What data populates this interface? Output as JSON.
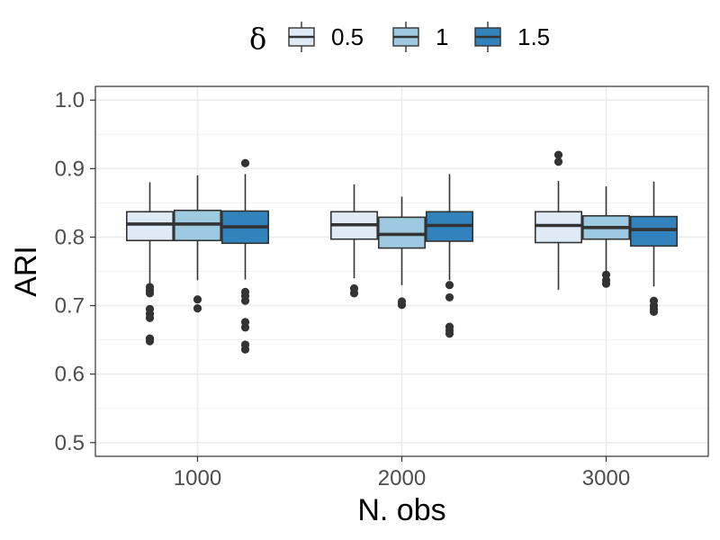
{
  "chart_data": {
    "type": "boxplot",
    "title": "",
    "xlabel": "N. obs",
    "ylabel": "ARI",
    "ylim": [
      0.48,
      1.02
    ],
    "yticks": [
      "0.5",
      "0.6",
      "0.7",
      "0.8",
      "0.9",
      "1.0"
    ],
    "categories": [
      "1000",
      "2000",
      "3000"
    ],
    "legend": {
      "title": "δ",
      "position": "top",
      "labels": [
        "0.5",
        "1",
        "1.5"
      ]
    },
    "colors": [
      "#deebf7",
      "#9ecae1",
      "#3182bd"
    ],
    "grid": true,
    "series": [
      {
        "name": "0.5",
        "boxes": [
          {
            "min": 0.727,
            "q1": 0.795,
            "median": 0.819,
            "q3": 0.837,
            "max": 0.88,
            "outliers": [
              0.727,
              0.722,
              0.718,
              0.695,
              0.688,
              0.682,
              0.652,
              0.648
            ]
          },
          {
            "min": 0.74,
            "q1": 0.797,
            "median": 0.818,
            "q3": 0.837,
            "max": 0.877,
            "outliers": [
              0.725,
              0.718
            ]
          },
          {
            "min": 0.723,
            "q1": 0.792,
            "median": 0.817,
            "q3": 0.837,
            "max": 0.882,
            "outliers": [
              0.92,
              0.91
            ]
          }
        ]
      },
      {
        "name": "1",
        "boxes": [
          {
            "min": 0.737,
            "q1": 0.795,
            "median": 0.819,
            "q3": 0.839,
            "max": 0.89,
            "outliers": [
              0.709,
              0.696
            ]
          },
          {
            "min": 0.73,
            "q1": 0.784,
            "median": 0.804,
            "q3": 0.829,
            "max": 0.859,
            "outliers": [
              0.706,
              0.701
            ]
          },
          {
            "min": 0.75,
            "q1": 0.797,
            "median": 0.814,
            "q3": 0.831,
            "max": 0.874,
            "outliers": [
              0.745,
              0.737,
              0.732
            ]
          }
        ]
      },
      {
        "name": "1.5",
        "boxes": [
          {
            "min": 0.738,
            "q1": 0.791,
            "median": 0.815,
            "q3": 0.838,
            "max": 0.892,
            "outliers": [
              0.908,
              0.72,
              0.714,
              0.707,
              0.676,
              0.668,
              0.643,
              0.636
            ]
          },
          {
            "min": 0.737,
            "q1": 0.794,
            "median": 0.817,
            "q3": 0.837,
            "max": 0.892,
            "outliers": [
              0.73,
              0.712,
              0.669,
              0.664,
              0.659
            ]
          },
          {
            "min": 0.728,
            "q1": 0.787,
            "median": 0.811,
            "q3": 0.83,
            "max": 0.881,
            "outliers": [
              0.707,
              0.7,
              0.695,
              0.691
            ]
          }
        ]
      }
    ]
  }
}
